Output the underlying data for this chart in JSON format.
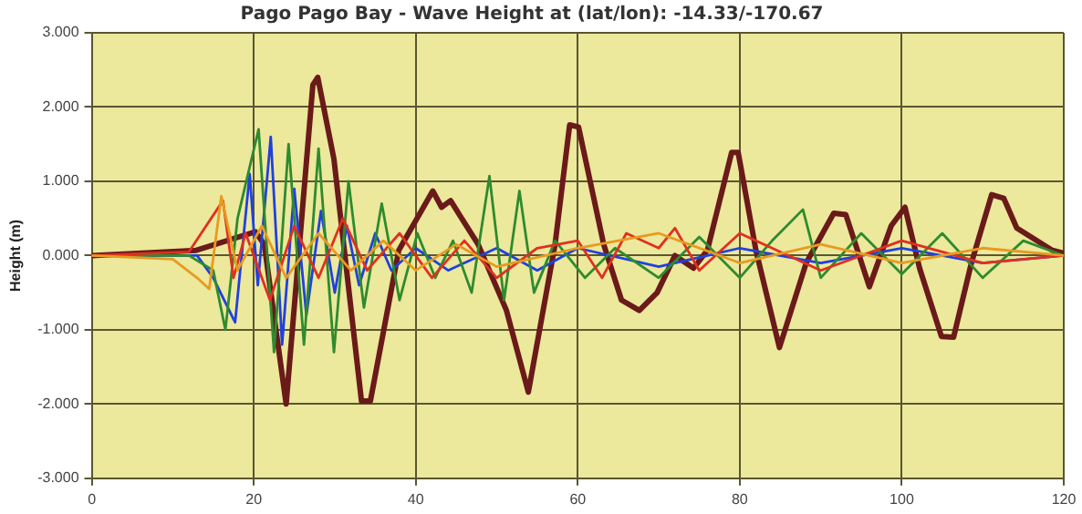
{
  "chart_data": {
    "type": "line",
    "title": "Pago Pago Bay - Wave Height at (lat/lon): -14.33/-170.67",
    "ylabel": "Height (m)",
    "xlim": [
      0,
      120
    ],
    "xticks": [
      0,
      20,
      40,
      60,
      80,
      100,
      120
    ],
    "ylim": [
      -3,
      3
    ],
    "yticks": [
      {
        "value": -3,
        "label": "-3.000"
      },
      {
        "value": -2,
        "label": "-2.000"
      },
      {
        "value": -1,
        "label": "-1.000"
      },
      {
        "value": 0,
        "label": "0.000"
      },
      {
        "value": 1,
        "label": "1.000"
      },
      {
        "value": 2,
        "label": "2.000"
      },
      {
        "value": 3,
        "label": "3.000"
      }
    ],
    "grid": true,
    "legend": false,
    "series": [
      {
        "color": "#e89a20",
        "x": [
          0,
          10,
          13,
          14.5,
          16,
          18,
          21,
          24,
          28,
          32,
          36,
          40,
          45,
          50,
          60,
          70,
          80,
          90,
          100,
          110,
          120
        ],
        "values": [
          0,
          -0.05,
          -0.3,
          -0.45,
          0.8,
          -0.2,
          0.4,
          -0.3,
          0.3,
          -0.2,
          0.2,
          -0.2,
          0.15,
          -0.15,
          0.1,
          0.3,
          -0.1,
          0.15,
          -0.1,
          0.1,
          0
        ]
      },
      {
        "color": "#e03020",
        "x": [
          0,
          12,
          16.2,
          17.5,
          19,
          22,
          25,
          28,
          31,
          34,
          38,
          42,
          46,
          50,
          55,
          60,
          63,
          66,
          70,
          72,
          75,
          80,
          90,
          100,
          110,
          120
        ],
        "values": [
          0,
          0.05,
          0.74,
          -0.3,
          0.3,
          -0.6,
          0.4,
          -0.3,
          0.5,
          -0.2,
          0.3,
          -0.3,
          0.2,
          -0.3,
          0.1,
          0.2,
          -0.3,
          0.3,
          0.1,
          0.37,
          -0.2,
          0.3,
          -0.2,
          0.2,
          -0.1,
          0
        ]
      },
      {
        "color": "#2e8b2e",
        "x": [
          0,
          12,
          15,
          16.5,
          18,
          20.6,
          22.5,
          24.3,
          26.2,
          28,
          29.9,
          31.7,
          33.6,
          35.8,
          38,
          40.2,
          42.4,
          44.6,
          46.9,
          49.1,
          50.9,
          52.8,
          54.6,
          57.2,
          60.9,
          64.6,
          70,
          75,
          80,
          84,
          87.8,
          90,
          95,
          100,
          105,
          110,
          115,
          120
        ],
        "values": [
          0,
          0,
          -0.2,
          -1,
          0.5,
          1.7,
          -1.3,
          1.5,
          -1.2,
          1.44,
          -1.3,
          1,
          -0.7,
          0.7,
          -0.6,
          0.3,
          -0.3,
          0.2,
          -0.5,
          1.07,
          -0.6,
          0.87,
          -0.5,
          0.2,
          -0.3,
          0.1,
          -0.3,
          0.25,
          -0.3,
          0.2,
          0.62,
          -0.3,
          0.3,
          -0.25,
          0.3,
          -0.3,
          0.2,
          0
        ]
      },
      {
        "color": "#2040e0",
        "x": [
          0,
          13,
          15,
          17.7,
          19.5,
          20.5,
          22.1,
          23.5,
          25,
          26.5,
          28.3,
          30,
          31.5,
          33,
          35,
          37,
          40,
          44,
          50,
          55,
          60,
          70,
          80,
          90,
          100,
          110,
          120
        ],
        "values": [
          0,
          0,
          -0.3,
          -0.9,
          1.1,
          -0.4,
          1.6,
          -1.2,
          0.9,
          -0.8,
          0.6,
          -0.5,
          0.4,
          -0.4,
          0.3,
          -0.2,
          0.1,
          -0.2,
          0.1,
          -0.2,
          0.1,
          -0.15,
          0.1,
          -0.1,
          0.1,
          -0.1,
          0
        ]
      },
      {
        "color": "#6b1a1a",
        "x": [
          0,
          12.9,
          20.2,
          21.3,
          24,
          27.3,
          27.9,
          29.9,
          33.3,
          34.4,
          37.9,
          42.1,
          43.2,
          44.3,
          47.7,
          51.2,
          53.9,
          57.2,
          59,
          60.1,
          63.2,
          65.4,
          67.6,
          69.8,
          72,
          74.3,
          76,
          79,
          79.8,
          82,
          84.9,
          88.2,
          91.6,
          93.1,
          96,
          98.7,
          100.4,
          102.2,
          104.9,
          106.4,
          108.6,
          111.1,
          112.6,
          114.2,
          118.6,
          120
        ],
        "values": [
          0,
          0.07,
          0.32,
          0.15,
          -2,
          2.3,
          2.4,
          1.3,
          -1.96,
          -1.96,
          0.07,
          0.87,
          0.65,
          0.74,
          0.15,
          -0.74,
          -1.84,
          0.15,
          1.76,
          1.73,
          0.15,
          -0.6,
          -0.74,
          -0.5,
          0,
          -0.17,
          0.07,
          1.39,
          1.39,
          0.07,
          -1.24,
          -0.1,
          0.57,
          0.55,
          -0.42,
          0.4,
          0.65,
          -0.17,
          -1.09,
          -1.1,
          -0.1,
          0.82,
          0.77,
          0.37,
          0.07,
          0.03
        ]
      }
    ]
  }
}
